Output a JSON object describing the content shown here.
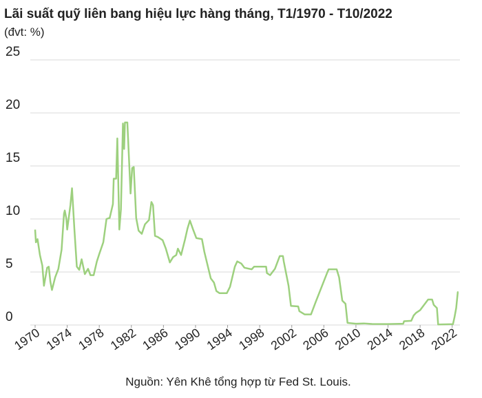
{
  "chart_data": {
    "type": "line",
    "title": "Lãi suất quỹ liên bang hiệu lực hàng tháng, T1/1970 - T10/2022",
    "subtitle": "(đvt: %)",
    "source": "Nguồn: Yên Khê tổng hợp từ Fed St. Louis.",
    "color": "#9dd07e",
    "grid": true,
    "xlim": [
      1970,
      2022.8
    ],
    "xticks": [
      1970,
      1974,
      1978,
      1982,
      1986,
      1990,
      1994,
      1998,
      2002,
      2006,
      2010,
      2014,
      2018,
      2022
    ],
    "ylim": [
      0,
      25
    ],
    "yticks": [
      0,
      5,
      10,
      15,
      20,
      25
    ],
    "x": [
      1970.0,
      1970.1,
      1970.3,
      1970.6,
      1970.9,
      1971.1,
      1971.5,
      1971.7,
      1971.9,
      1972.1,
      1972.5,
      1972.9,
      1973.3,
      1973.6,
      1973.7,
      1973.9,
      1974.0,
      1974.4,
      1974.6,
      1974.9,
      1975.2,
      1975.5,
      1975.8,
      1976.2,
      1976.6,
      1976.9,
      1977.3,
      1977.7,
      1978.0,
      1978.5,
      1978.9,
      1979.3,
      1979.7,
      1979.8,
      1980.1,
      1980.25,
      1980.5,
      1980.7,
      1980.95,
      1981.1,
      1981.2,
      1981.5,
      1981.9,
      1982.1,
      1982.3,
      1982.6,
      1982.9,
      1983.3,
      1983.7,
      1984.2,
      1984.5,
      1984.7,
      1984.95,
      1985.3,
      1985.9,
      1986.3,
      1986.8,
      1987.2,
      1987.6,
      1987.8,
      1988.2,
      1988.7,
      1989.0,
      1989.3,
      1989.7,
      1990.1,
      1990.8,
      1991.1,
      1991.9,
      1992.3,
      1992.6,
      1993.0,
      1993.9,
      1994.3,
      1994.9,
      1995.2,
      1995.7,
      1996.1,
      1997.0,
      1997.3,
      1998.0,
      1998.8,
      1998.9,
      1999.3,
      1999.9,
      2000.5,
      2000.9,
      2001.0,
      2001.6,
      2001.9,
      2002.8,
      2002.95,
      2003.6,
      2004.4,
      2005.0,
      2006.4,
      2006.6,
      2007.6,
      2007.9,
      2008.3,
      2008.7,
      2008.95,
      2010.0,
      2011.0,
      2012.0,
      2014.0,
      2015.9,
      2016.0,
      2016.9,
      2017.2,
      2017.5,
      2018.0,
      2018.5,
      2019.0,
      2019.5,
      2019.7,
      2020.1,
      2020.25,
      2022.1,
      2022.3,
      2022.5,
      2022.7,
      2022.75
    ],
    "values": [
      9.0,
      7.8,
      8.1,
      6.6,
      5.6,
      3.7,
      5.4,
      5.5,
      4.1,
      3.3,
      4.5,
      5.3,
      7.1,
      10.5,
      10.8,
      10.0,
      9.0,
      11.3,
      12.9,
      9.0,
      5.5,
      5.2,
      6.2,
      4.8,
      5.3,
      4.7,
      4.7,
      6.0,
      6.7,
      7.8,
      10.0,
      10.1,
      11.4,
      13.8,
      13.8,
      17.6,
      9.0,
      10.9,
      19.0,
      16.6,
      19.1,
      19.1,
      12.4,
      14.8,
      14.9,
      10.1,
      8.9,
      8.6,
      9.5,
      9.9,
      11.6,
      11.3,
      8.4,
      8.3,
      8.0,
      7.2,
      5.9,
      6.4,
      6.6,
      7.2,
      6.6,
      8.1,
      9.1,
      9.85,
      9.0,
      8.2,
      8.1,
      6.9,
      4.4,
      4.0,
      3.2,
      3.0,
      3.0,
      3.6,
      5.5,
      6.0,
      5.8,
      5.4,
      5.25,
      5.5,
      5.5,
      5.5,
      4.9,
      4.7,
      5.3,
      6.5,
      6.5,
      6.0,
      3.7,
      1.8,
      1.75,
      1.3,
      1.0,
      1.0,
      2.2,
      4.9,
      5.25,
      5.25,
      4.5,
      2.3,
      2.0,
      0.2,
      0.12,
      0.15,
      0.1,
      0.09,
      0.12,
      0.36,
      0.4,
      0.9,
      1.15,
      1.4,
      1.9,
      2.4,
      2.4,
      1.9,
      1.6,
      0.05,
      0.08,
      0.77,
      1.6,
      3.1,
      3.08
    ]
  }
}
